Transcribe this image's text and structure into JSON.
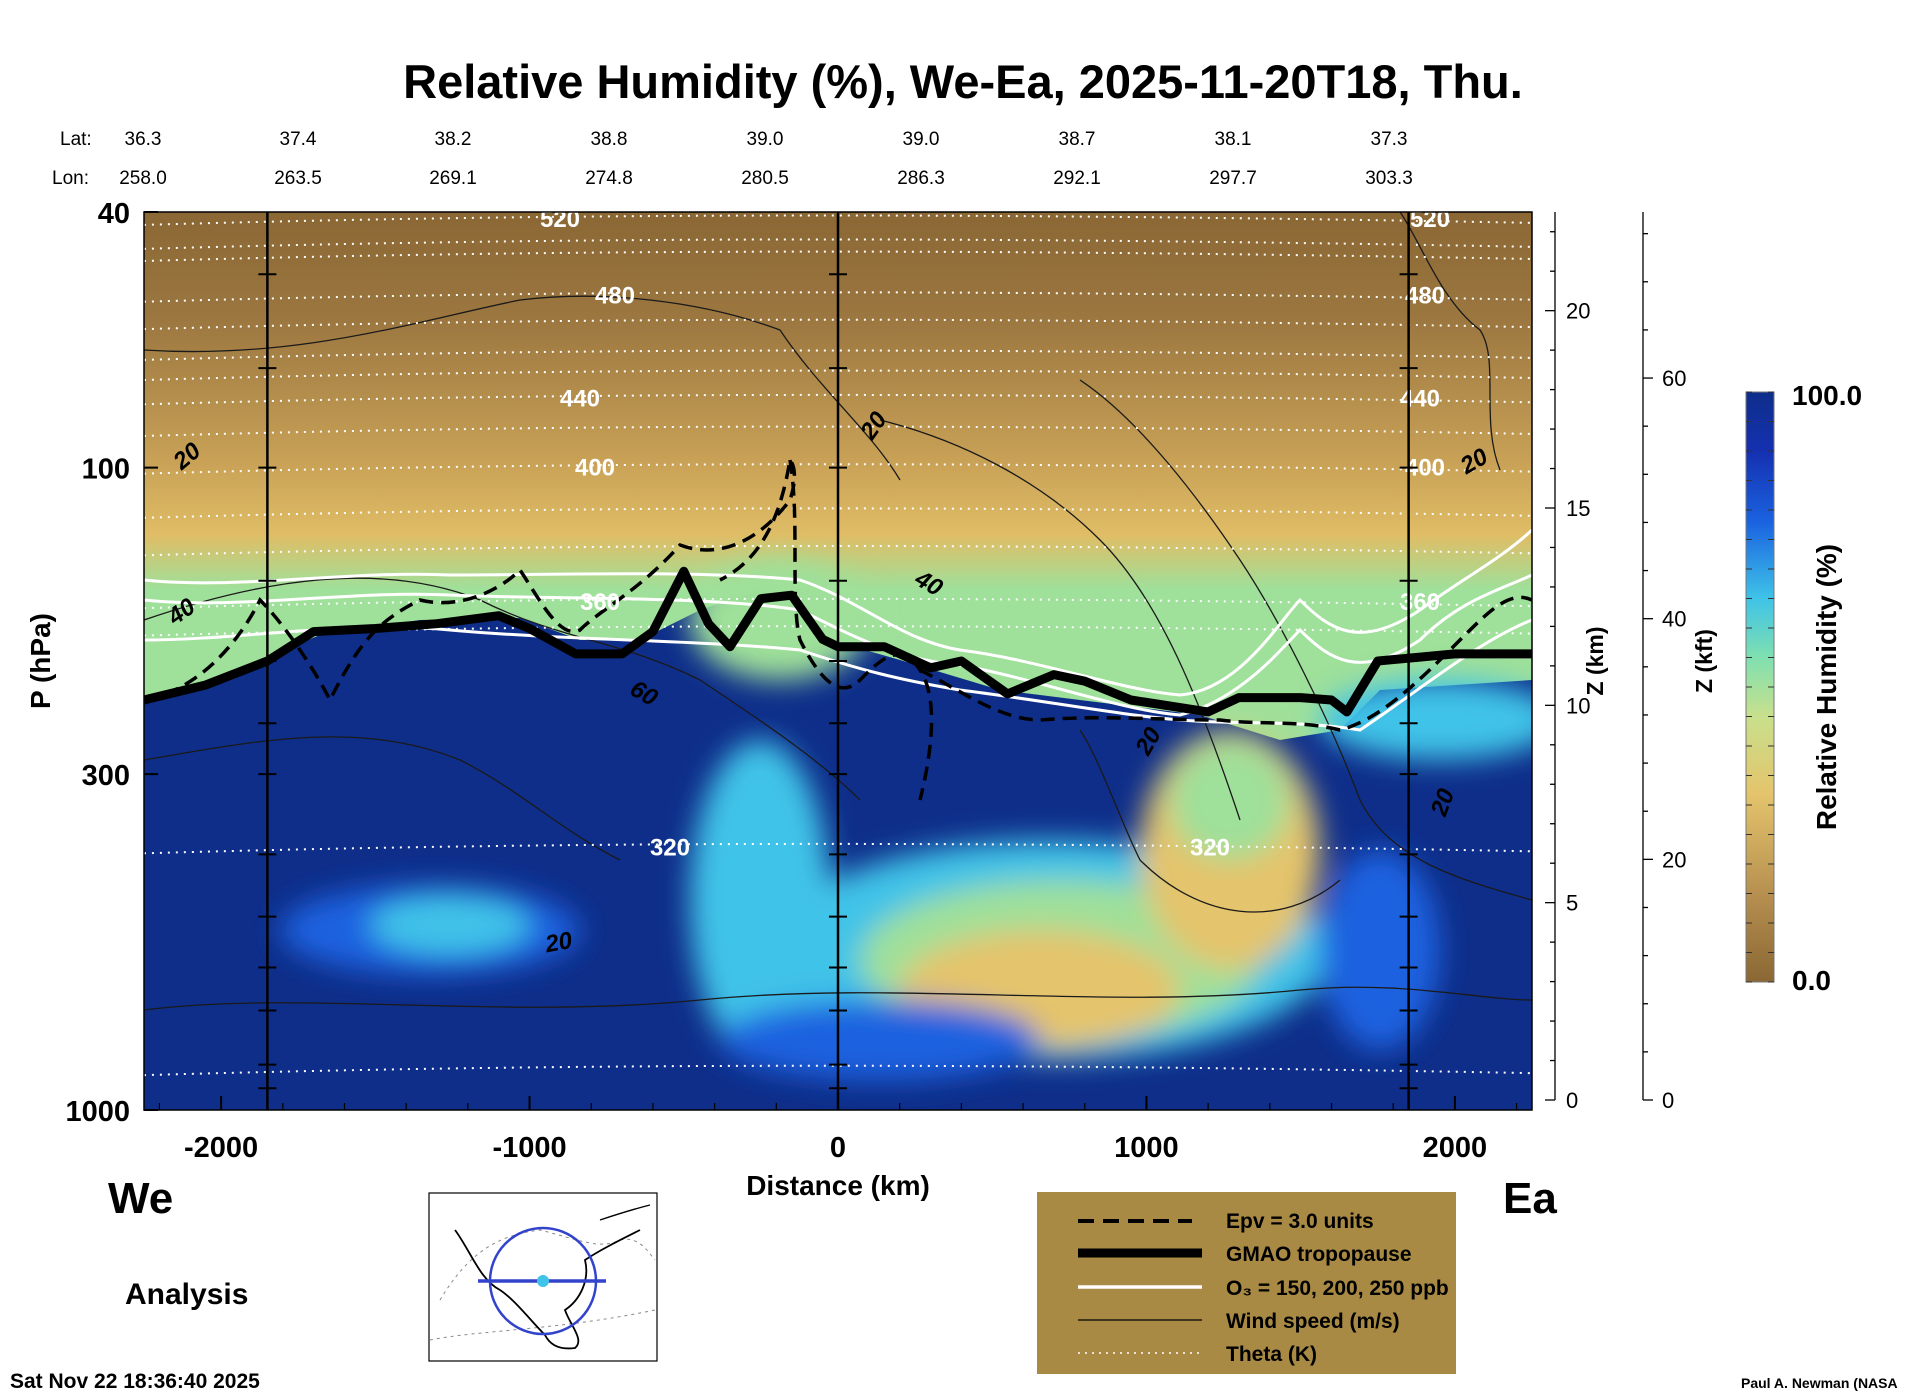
{
  "title": "Relative Humidity (%), We-Ea, 2025-11-20T18, Thu.",
  "lat_label": "Lat:",
  "lon_label": "Lon:",
  "lat_values": [
    "36.3",
    "37.4",
    "38.2",
    "38.8",
    "39.0",
    "39.0",
    "38.7",
    "38.1",
    "37.3"
  ],
  "lon_values": [
    "258.0",
    "263.5",
    "269.1",
    "274.8",
    "280.5",
    "286.3",
    "292.1",
    "297.7",
    "303.3"
  ],
  "direction_left": "We",
  "direction_right": "Ea",
  "analysis_label": "Analysis",
  "timestamp": "Sat Nov 22 18:36:40 2025",
  "credit": "Paul A. Newman (NASA",
  "colors": {
    "dry": "#8a6734",
    "mid": "#e4c46c",
    "green": "#9fe09a",
    "cyan": "#3fc3e8",
    "blue": "#1a62e0",
    "moist": "#0e2e8a",
    "legend_bg": "#a88a44"
  },
  "chart_data": {
    "type": "heatmap",
    "title": "Relative Humidity (%), We-Ea, 2025-11-20T18, Thu.",
    "xlabel": "Distance (km)",
    "ylabel": "P (hPa)",
    "xlim": [
      -2250,
      2250
    ],
    "ylim": [
      1000,
      40
    ],
    "y_scale": "log",
    "x_ticks": [
      -2000,
      -1000,
      0,
      1000,
      2000
    ],
    "x_tick_labels": [
      "-2000",
      "-1000",
      "0",
      "1000",
      "2000"
    ],
    "y_ticks": [
      40,
      100,
      300,
      1000
    ],
    "y_tick_labels": [
      "40",
      "100",
      "300",
      "1000"
    ],
    "z_km_axis": {
      "label": "Z (km)",
      "ticks": [
        0,
        5,
        10,
        15,
        20
      ],
      "labels": [
        "0",
        "5",
        "10",
        "15",
        "20"
      ]
    },
    "z_kft_axis": {
      "label": "Z (kft)",
      "ticks": [
        0,
        20,
        40,
        60
      ],
      "labels": [
        "0",
        "20",
        "40",
        "60"
      ]
    },
    "colorbar": {
      "label": "Relative Humidity (%)",
      "min": 0.0,
      "max": 100.0,
      "min_label": "0.0",
      "max_label": "100.0"
    },
    "station_lines_km": [
      -1850,
      0,
      1850
    ],
    "tropopause_hPa": [
      [
        -2250,
        230
      ],
      [
        -2050,
        218
      ],
      [
        -1850,
        200
      ],
      [
        -1700,
        180
      ],
      [
        -1500,
        178
      ],
      [
        -1300,
        175
      ],
      [
        -1100,
        170
      ],
      [
        -1000,
        178
      ],
      [
        -850,
        195
      ],
      [
        -700,
        195
      ],
      [
        -600,
        180
      ],
      [
        -500,
        145
      ],
      [
        -420,
        175
      ],
      [
        -350,
        190
      ],
      [
        -250,
        160
      ],
      [
        -150,
        158
      ],
      [
        -50,
        185
      ],
      [
        0,
        190
      ],
      [
        150,
        190
      ],
      [
        300,
        205
      ],
      [
        400,
        200
      ],
      [
        550,
        225
      ],
      [
        700,
        210
      ],
      [
        800,
        215
      ],
      [
        950,
        230
      ],
      [
        1200,
        240
      ],
      [
        1300,
        228
      ],
      [
        1500,
        228
      ],
      [
        1600,
        230
      ],
      [
        1650,
        240
      ],
      [
        1750,
        200
      ],
      [
        2000,
        195
      ],
      [
        2250,
        195
      ]
    ],
    "theta_levels": [
      {
        "label": "320",
        "p_hPa": 390
      },
      {
        "label": "360",
        "p_hPa": 162
      },
      {
        "label": "400",
        "p_hPa": 100
      },
      {
        "label": "440",
        "p_hPa": 78
      },
      {
        "label": "480",
        "p_hPa": 54
      },
      {
        "label": "520",
        "p_hPa": 41
      }
    ],
    "wind_labels": [
      "20",
      "40",
      "60",
      "20",
      "20",
      "40",
      "20",
      "20",
      "20"
    ],
    "legend": [
      {
        "label": "Epv = 3.0 units",
        "style": "dashed"
      },
      {
        "label": "GMAO tropopause",
        "style": "thick"
      },
      {
        "label": "O₃ = 150, 200, 250 ppb",
        "style": "white"
      },
      {
        "label": "Wind speed (m/s)",
        "style": "thin"
      },
      {
        "label": "Theta (K)",
        "style": "dotted"
      }
    ]
  }
}
